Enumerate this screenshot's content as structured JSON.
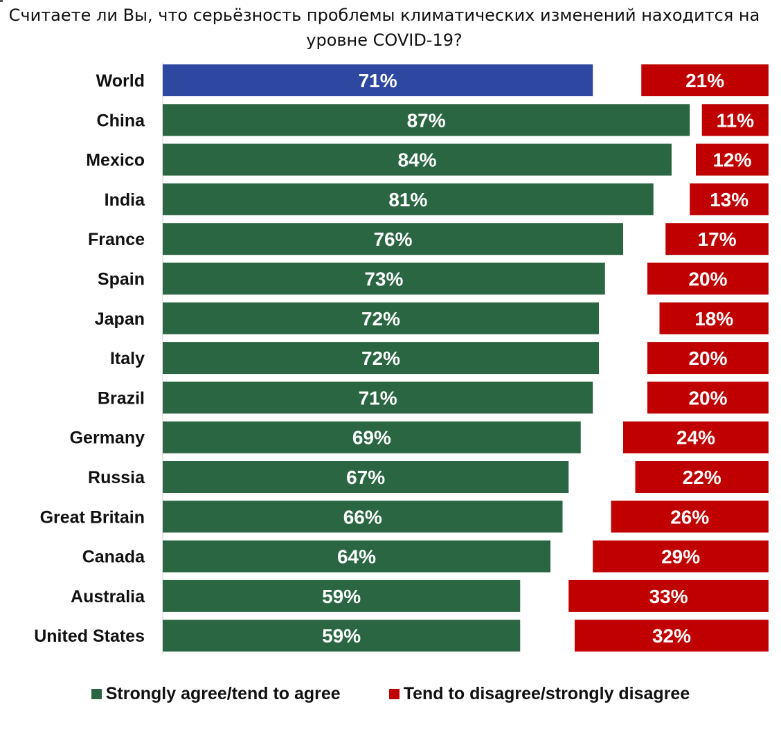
{
  "colors": {
    "world": "#2e47a0",
    "agree": "#2a6642",
    "disagree": "#c00000",
    "axis": "#d0d0d0"
  },
  "chart_data": {
    "type": "bar",
    "title": "Считаете ли Вы, что серьёзность проблемы климатических изменений находится на уровне COVID-19?",
    "categories": [
      "World",
      "China",
      "Mexico",
      "India",
      "France",
      "Spain",
      "Japan",
      "Italy",
      "Brazil",
      "Germany",
      "Russia",
      "Great Britain",
      "Canada",
      "Australia",
      "United States"
    ],
    "series": [
      {
        "name": "Strongly agree/tend to agree",
        "values": [
          71,
          87,
          84,
          81,
          76,
          73,
          72,
          72,
          71,
          69,
          67,
          66,
          64,
          59,
          59
        ]
      },
      {
        "name": "Tend to disagree/strongly disagree",
        "values": [
          21,
          11,
          12,
          13,
          17,
          20,
          18,
          20,
          20,
          24,
          22,
          26,
          29,
          33,
          32
        ]
      }
    ],
    "value_suffix": "%",
    "highlight_category": "World",
    "xlabel": "",
    "ylabel": "",
    "xlim": [
      0,
      100
    ],
    "legend_position": "bottom"
  }
}
